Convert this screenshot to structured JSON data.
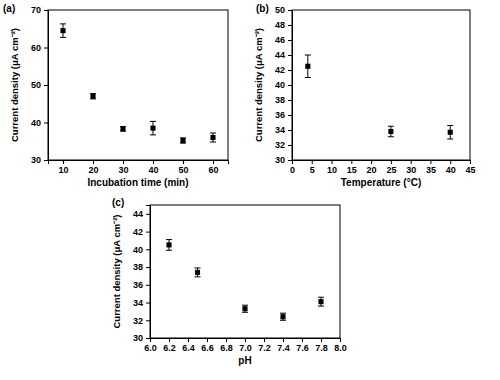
{
  "chart_data": [
    {
      "type": "scatter",
      "title": "(a)",
      "x_label": "Incubation time (min)",
      "y_label": "Current density (μA cm⁻²)",
      "x": [
        10,
        20,
        30,
        40,
        50,
        60
      ],
      "xlim": [
        5,
        65
      ],
      "xticks": [
        10,
        20,
        30,
        40,
        50,
        60
      ],
      "ylim": [
        30,
        70
      ],
      "yticks": [
        30,
        40,
        50,
        60,
        70
      ],
      "grid": false,
      "series": [
        {
          "color": "#000000",
          "marker": "square",
          "values": [
            64.5,
            47,
            38.3,
            38.5,
            35.2,
            36
          ],
          "errors": [
            1.8,
            0.7,
            0.6,
            1.8,
            0.7,
            1.2
          ]
        }
      ]
    },
    {
      "type": "scatter",
      "title": "(b)",
      "x_label": "Temperature (°C)",
      "y_label": "Current density (μA cm⁻²)",
      "x": [
        4,
        25,
        40
      ],
      "xlim": [
        0,
        45
      ],
      "xticks": [
        0,
        5,
        10,
        15,
        20,
        25,
        30,
        35,
        40,
        45
      ],
      "ylim": [
        30,
        50
      ],
      "yticks": [
        30,
        32,
        34,
        36,
        38,
        40,
        42,
        44,
        46,
        48,
        50
      ],
      "grid": false,
      "series": [
        {
          "color": "#000000",
          "marker": "square",
          "values": [
            42.5,
            33.8,
            33.7
          ],
          "errors": [
            1.5,
            0.7,
            0.9
          ]
        }
      ]
    },
    {
      "type": "scatter",
      "title": "(c)",
      "x_label": "pH",
      "y_label": "Current density (μA cm⁻²)",
      "x": [
        6.2,
        6.5,
        7.0,
        7.4,
        7.8
      ],
      "xlim": [
        6,
        8
      ],
      "xticks": [
        {
          "value": 6,
          "label": "6.0"
        },
        6.2,
        6.4,
        6.6,
        6.8,
        {
          "value": 7,
          "label": "7.0"
        },
        7.2,
        7.4,
        7.6,
        7.8,
        {
          "value": 8,
          "label": "8.0"
        }
      ],
      "ylim": [
        30,
        45
      ],
      "yticks": [
        30,
        32,
        34,
        36,
        38,
        40,
        42,
        44
      ],
      "grid": false,
      "series": [
        {
          "color": "#000000",
          "marker": "square",
          "values": [
            40.5,
            37.4,
            33.3,
            32.4,
            34.1
          ],
          "errors": [
            0.6,
            0.5,
            0.4,
            0.4,
            0.5
          ]
        }
      ]
    }
  ]
}
